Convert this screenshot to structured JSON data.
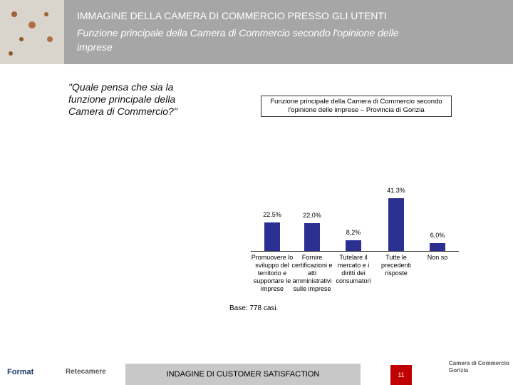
{
  "header": {
    "title": "IMMAGINE DELLA CAMERA DI COMMERCIO PRESSO GLI UTENTI",
    "subtitle": "Funzione principale della Camera di Commercio secondo l'opinione delle imprese"
  },
  "question": "\"Quale pensa che sia la funzione principale della Camera di Commercio?\"",
  "chart_data": {
    "type": "bar",
    "title": "Funzione principale della Camera di Commercio secondo l'opinione delle imprese – Provincia di Gorizia",
    "categories": [
      "Promuovere lo sviluppo del territorio e supportare le imprese",
      "Fornire certificazioni e atti amministrativi sulle imprese",
      "Tutelare il mercato e i diritti dei consumatori",
      "Tutte le precedenti risposte",
      "Non so"
    ],
    "values": [
      22.5,
      22.0,
      8.2,
      41.3,
      6.0
    ],
    "value_labels": [
      "22.5%",
      "22,0%",
      "8,2%",
      "41.3%",
      "6,0%"
    ],
    "color": "#2b2f8f",
    "note": "Base: 778 casi."
  },
  "footer": {
    "logo_left": "Format",
    "logo_mid": "Retecamere",
    "banner": "INDAGINE DI CUSTOMER SATISFACTION",
    "page": "11",
    "logo_right": "Camera di Commercio Gorizia"
  }
}
